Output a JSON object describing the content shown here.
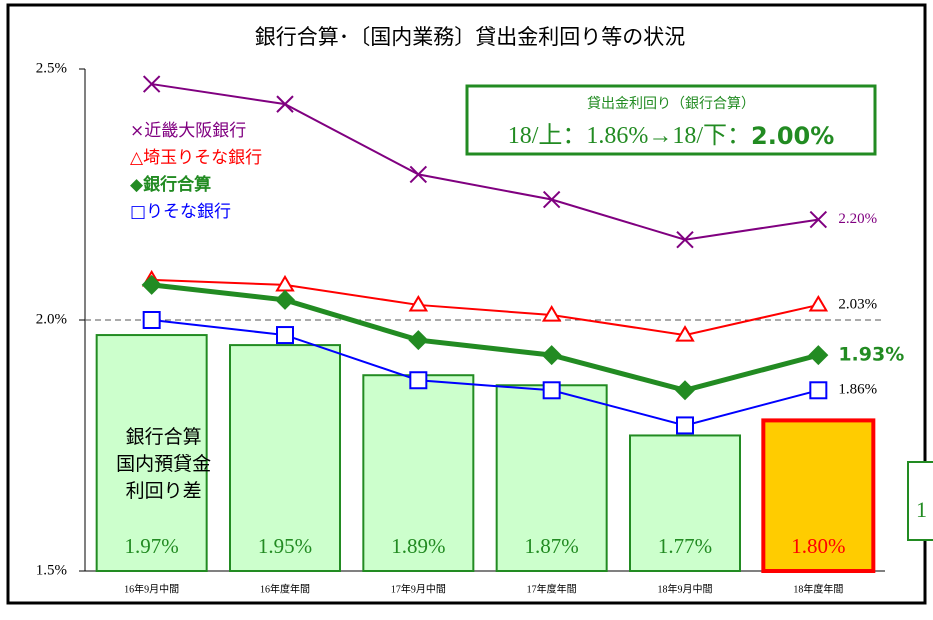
{
  "chart_data": {
    "type": "combo",
    "title": "銀行合算･〔国内業務〕貸出金利回り等の状況",
    "categories": [
      "16年9月中間",
      "16年度年間",
      "17年9月中間",
      "17年度年間",
      "18年9月中間",
      "18年度年間"
    ],
    "bars": {
      "name": "銀行合算\n国内預貸金\n利回り差",
      "values": [
        1.97,
        1.95,
        1.89,
        1.87,
        1.77,
        1.8
      ],
      "value_labels": [
        "1.97%",
        "1.95%",
        "1.89%",
        "1.87%",
        "1.77%",
        "1.80%"
      ],
      "colors": [
        "#ccffcc",
        "#ccffcc",
        "#ccffcc",
        "#ccffcc",
        "#ccffcc",
        "#ffcc00"
      ],
      "edge_colors": [
        "#228b22",
        "#228b22",
        "#228b22",
        "#228b22",
        "#228b22",
        "#ff0000"
      ],
      "label_colors": [
        "#228b22",
        "#228b22",
        "#228b22",
        "#228b22",
        "#228b22",
        "#ff0000"
      ]
    },
    "series": [
      {
        "name": "×近畿大阪銀行",
        "color": "#800080",
        "marker": "x",
        "width": 2,
        "values": [
          2.47,
          2.43,
          2.29,
          2.24,
          2.16,
          2.2
        ],
        "value_labels": [
          null,
          null,
          null,
          null,
          null,
          "2.20%"
        ],
        "label_color": "#800080"
      },
      {
        "name": "△埼玉りそな銀行",
        "color": "#ff0000",
        "marker": "triangle",
        "width": 2,
        "values": [
          2.08,
          2.07,
          2.03,
          2.01,
          1.97,
          2.03
        ],
        "value_labels": [
          null,
          null,
          null,
          null,
          null,
          "2.03%"
        ],
        "label_color": "#000000"
      },
      {
        "name": "◆銀行合算",
        "color": "#228b22",
        "marker": "diamond",
        "width": 5,
        "values": [
          2.07,
          2.04,
          1.96,
          1.93,
          1.86,
          1.93
        ],
        "value_labels": [
          null,
          null,
          null,
          null,
          null,
          "1.93%"
        ],
        "label_color": "#228b22"
      },
      {
        "name": "□りそな銀行",
        "color": "#0000ff",
        "marker": "square",
        "width": 2,
        "values": [
          2.0,
          1.97,
          1.88,
          1.86,
          1.79,
          1.86
        ],
        "value_labels": [
          null,
          null,
          null,
          null,
          null,
          "1.86%"
        ],
        "label_color": "#000000"
      }
    ],
    "ylim": [
      1.5,
      2.5
    ],
    "yticks": [
      {
        "value": 1.5,
        "label": "1.5%"
      },
      {
        "value": 2.0,
        "label": "2.0%"
      },
      {
        "value": 2.5,
        "label": "2.5%"
      }
    ],
    "reference_line": 2.0,
    "info_box": {
      "title": "貸出金利回り（銀行合算）",
      "from": "18/上：1.86%→18/下：",
      "to": "2.00%"
    },
    "clipped_label": "1"
  }
}
